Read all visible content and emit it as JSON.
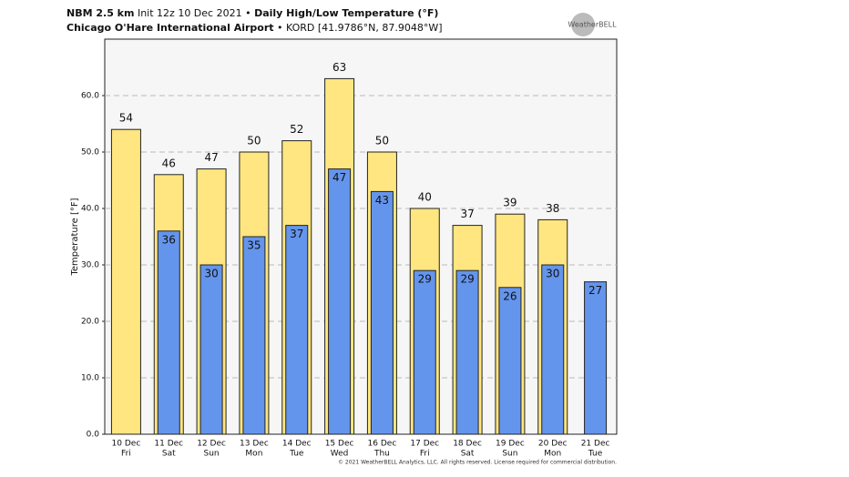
{
  "chart_data": {
    "type": "bar",
    "title_model": "NBM 2.5 km",
    "title_init": "Init 12z 10 Dec 2021",
    "title_main": "Daily High/Low Temperature (°F)",
    "subtitle_station": "Chicago O'Hare International Airport",
    "subtitle_loc": "KORD [41.9786°N, 87.9048°W]",
    "logo": "WeatherBELL",
    "footer": "© 2021 WeatherBELL Analytics, LLC. All rights reserved. License required for commercial distribution.",
    "y_label": "Temperature [°F]",
    "categories": [
      "10 Dec",
      "11 Dec",
      "12 Dec",
      "13 Dec",
      "14 Dec",
      "15 Dec",
      "16 Dec",
      "17 Dec",
      "18 Dec",
      "19 Dec",
      "20 Dec",
      "21 Dec"
    ],
    "weekdays": [
      "Fri",
      "Sat",
      "Sun",
      "Mon",
      "Tue",
      "Wed",
      "Thu",
      "Fri",
      "Sat",
      "Sun",
      "Mon",
      "Tue"
    ],
    "series": [
      {
        "name": "High",
        "color": "#ffe680",
        "values": [
          54,
          46,
          47,
          50,
          52,
          63,
          50,
          40,
          37,
          39,
          38,
          null
        ]
      },
      {
        "name": "Low",
        "color": "#6495ed",
        "values": [
          null,
          36,
          30,
          35,
          37,
          47,
          43,
          29,
          29,
          26,
          30,
          27
        ]
      }
    ],
    "ylim": [
      0,
      70
    ],
    "yticks": [
      {
        "value": 0,
        "label": "0.0"
      },
      {
        "value": 10,
        "label": "10.0"
      },
      {
        "value": 20,
        "label": "20.0"
      },
      {
        "value": 30,
        "label": "30.0"
      },
      {
        "value": 40,
        "label": "40.0"
      },
      {
        "value": 50,
        "label": "50.0"
      },
      {
        "value": 60,
        "label": "60.0"
      }
    ],
    "grid": true
  }
}
